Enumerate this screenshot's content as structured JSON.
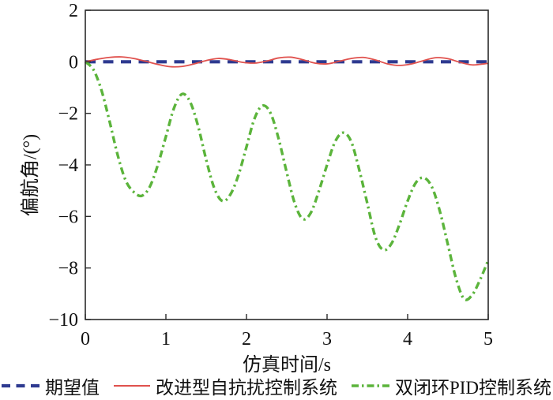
{
  "figure": {
    "background": "#ffffff",
    "text_color": "#111111",
    "axis_color": "#2b2b2b"
  },
  "chart_data": {
    "type": "line",
    "title": "",
    "xlabel": "仿真时间/s",
    "ylabel": "偏航角/(°)",
    "xlim": [
      0,
      5
    ],
    "ylim": [
      -10,
      2
    ],
    "xticks": [
      0,
      1,
      2,
      3,
      4,
      5
    ],
    "yticks": [
      2,
      0,
      -2,
      -4,
      -6,
      -8,
      -10
    ],
    "grid": false,
    "legend_position": "bottom",
    "series": [
      {
        "name": "期望值",
        "color": "#2e3a90",
        "style": "dashed",
        "width": 4.2,
        "points": [
          [
            0,
            0
          ],
          [
            5,
            0
          ]
        ]
      },
      {
        "name": "改进型自抗扰控制系统",
        "color": "#e0514d",
        "style": "solid",
        "width": 1.8,
        "points": [
          [
            0,
            0
          ],
          [
            0.15,
            0.1
          ],
          [
            0.3,
            0.17
          ],
          [
            0.45,
            0.19
          ],
          [
            0.6,
            0.13
          ],
          [
            0.75,
            0.02
          ],
          [
            0.9,
            -0.1
          ],
          [
            1.05,
            -0.19
          ],
          [
            1.2,
            -0.18
          ],
          [
            1.35,
            -0.08
          ],
          [
            1.5,
            0.05
          ],
          [
            1.65,
            0.13
          ],
          [
            1.8,
            0.08
          ],
          [
            1.95,
            -0.02
          ],
          [
            2.1,
            -0.05
          ],
          [
            2.25,
            0.03
          ],
          [
            2.4,
            0.15
          ],
          [
            2.55,
            0.18
          ],
          [
            2.7,
            0.08
          ],
          [
            2.85,
            -0.05
          ],
          [
            3.0,
            -0.08
          ],
          [
            3.15,
            0.02
          ],
          [
            3.3,
            0.13
          ],
          [
            3.45,
            0.17
          ],
          [
            3.6,
            0.07
          ],
          [
            3.75,
            -0.08
          ],
          [
            3.9,
            -0.14
          ],
          [
            4.05,
            -0.08
          ],
          [
            4.2,
            0.05
          ],
          [
            4.35,
            0.16
          ],
          [
            4.5,
            0.12
          ],
          [
            4.65,
            -0.02
          ],
          [
            4.8,
            -0.12
          ],
          [
            4.95,
            -0.08
          ],
          [
            5.0,
            -0.06
          ]
        ]
      },
      {
        "name": "双闭环PID控制系统",
        "color": "#5bb43b",
        "style": "dashdot",
        "width": 3.4,
        "points": [
          [
            0,
            0
          ],
          [
            0.1,
            -0.3
          ],
          [
            0.2,
            -1.1
          ],
          [
            0.3,
            -2.3
          ],
          [
            0.4,
            -3.6
          ],
          [
            0.5,
            -4.6
          ],
          [
            0.6,
            -5.05
          ],
          [
            0.7,
            -5.2
          ],
          [
            0.8,
            -4.85
          ],
          [
            0.9,
            -4.0
          ],
          [
            1.0,
            -2.9
          ],
          [
            1.1,
            -1.8
          ],
          [
            1.2,
            -1.25
          ],
          [
            1.3,
            -1.55
          ],
          [
            1.4,
            -2.5
          ],
          [
            1.5,
            -3.8
          ],
          [
            1.6,
            -4.9
          ],
          [
            1.7,
            -5.4
          ],
          [
            1.8,
            -5.15
          ],
          [
            1.9,
            -4.4
          ],
          [
            2.0,
            -3.3
          ],
          [
            2.1,
            -2.2
          ],
          [
            2.2,
            -1.7
          ],
          [
            2.3,
            -2.0
          ],
          [
            2.4,
            -3.0
          ],
          [
            2.5,
            -4.3
          ],
          [
            2.6,
            -5.5
          ],
          [
            2.7,
            -6.1
          ],
          [
            2.8,
            -5.85
          ],
          [
            2.9,
            -5.0
          ],
          [
            3.0,
            -4.0
          ],
          [
            3.1,
            -3.1
          ],
          [
            3.2,
            -2.75
          ],
          [
            3.3,
            -3.1
          ],
          [
            3.4,
            -4.2
          ],
          [
            3.5,
            -5.5
          ],
          [
            3.6,
            -6.8
          ],
          [
            3.7,
            -7.3
          ],
          [
            3.8,
            -7.05
          ],
          [
            3.9,
            -6.3
          ],
          [
            4.0,
            -5.4
          ],
          [
            4.1,
            -4.7
          ],
          [
            4.2,
            -4.5
          ],
          [
            4.3,
            -4.85
          ],
          [
            4.4,
            -5.8
          ],
          [
            4.5,
            -7.1
          ],
          [
            4.6,
            -8.4
          ],
          [
            4.7,
            -9.2
          ],
          [
            4.8,
            -9.05
          ],
          [
            4.9,
            -8.45
          ],
          [
            5.0,
            -7.7
          ]
        ]
      }
    ]
  }
}
